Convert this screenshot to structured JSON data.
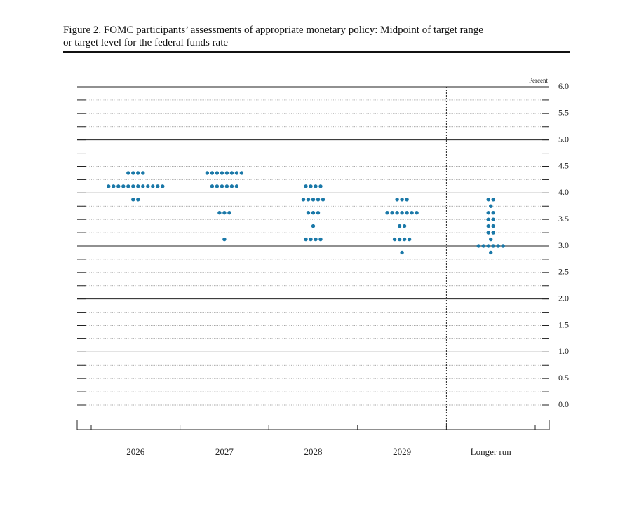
{
  "chart_data": {
    "type": "dot",
    "title": [
      "Figure 2. FOMC participants’ assessments of appropriate monetary policy: Midpoint of target range",
      "or target level for the federal funds rate"
    ],
    "y_label": "Percent",
    "categories": [
      "2026",
      "2027",
      "2028",
      "2029",
      "Longer run"
    ],
    "color": "#1a78a8",
    "dots": [
      [
        {
          "rate": 4.375,
          "count": 4
        },
        {
          "rate": 4.125,
          "count": 12
        },
        {
          "rate": 3.875,
          "count": 2
        }
      ],
      [
        {
          "rate": 4.375,
          "count": 8
        },
        {
          "rate": 4.125,
          "count": 6
        },
        {
          "rate": 3.625,
          "count": 3
        },
        {
          "rate": 3.125,
          "count": 1
        }
      ],
      [
        {
          "rate": 4.125,
          "count": 4
        },
        {
          "rate": 3.875,
          "count": 5
        },
        {
          "rate": 3.625,
          "count": 3
        },
        {
          "rate": 3.375,
          "count": 1
        },
        {
          "rate": 3.125,
          "count": 4
        }
      ],
      [
        {
          "rate": 3.875,
          "count": 3
        },
        {
          "rate": 3.625,
          "count": 7
        },
        {
          "rate": 3.375,
          "count": 2
        },
        {
          "rate": 3.125,
          "count": 4
        },
        {
          "rate": 2.875,
          "count": 1
        }
      ],
      [
        {
          "rate": 3.875,
          "count": 2
        },
        {
          "rate": 3.75,
          "count": 1
        },
        {
          "rate": 3.625,
          "count": 2
        },
        {
          "rate": 3.5,
          "count": 2
        },
        {
          "rate": 3.375,
          "count": 2
        },
        {
          "rate": 3.25,
          "count": 2
        },
        {
          "rate": 3.125,
          "count": 1
        },
        {
          "rate": 3.0,
          "count": 6
        },
        {
          "rate": 2.875,
          "count": 1
        }
      ]
    ],
    "ylim": [
      -0.5,
      6.0
    ],
    "yticks": [
      {
        "value": 0,
        "label": "0.0"
      },
      0.5,
      {
        "value": 1,
        "label": "1.0"
      },
      1.5,
      {
        "value": 2,
        "label": "2.0"
      },
      2.5,
      {
        "value": 3,
        "label": "3.0"
      },
      3.5,
      {
        "value": 4,
        "label": "4.0"
      },
      4.5,
      {
        "value": 5,
        "label": "5.0"
      },
      5.5,
      {
        "value": 6,
        "label": "6.0"
      }
    ],
    "minor_yticks": [
      0.25,
      0.75,
      1.25,
      1.75,
      2.25,
      2.75,
      3.25,
      3.75,
      4.25,
      4.75,
      5.25,
      5.75
    ]
  }
}
